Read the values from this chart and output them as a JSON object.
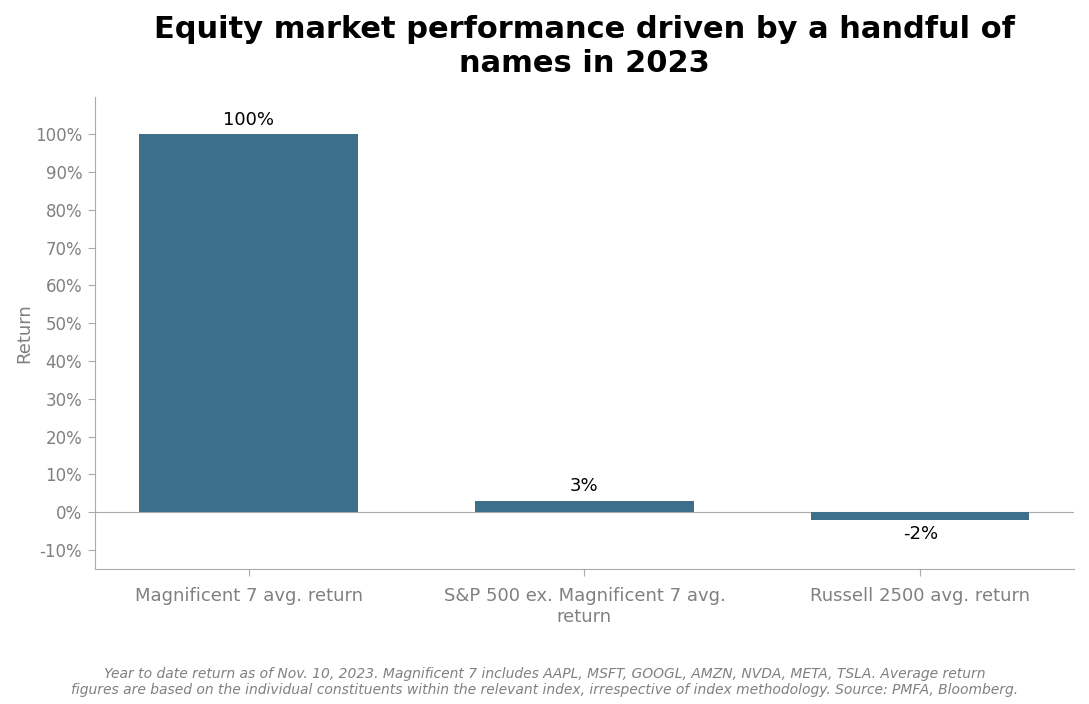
{
  "title": "Equity market performance driven by a handful of\nnames in 2023",
  "categories": [
    "Magnificent 7 avg. return",
    "S&P 500 ex. Magnificent 7 avg.\nreturn",
    "Russell 2500 avg. return"
  ],
  "values": [
    100,
    3,
    -2
  ],
  "bar_labels": [
    "100%",
    "3%",
    "-2%"
  ],
  "bar_color": "#3d6f8a",
  "ylabel": "Return",
  "yticks": [
    -10,
    0,
    10,
    20,
    30,
    40,
    50,
    60,
    70,
    80,
    90,
    100
  ],
  "ytick_labels": [
    "-10%",
    "0%",
    "10%",
    "20%",
    "30%",
    "40%",
    "50%",
    "60%",
    "70%",
    "80%",
    "90%",
    "100%"
  ],
  "ylim": [
    -15,
    110
  ],
  "footnote": "Year to date return as of Nov. 10, 2023. Magnificent 7 includes AAPL, MSFT, GOOGL, AMZN, NVDA, META, TSLA. Average return\nfigures are based on the individual constituents within the relevant index, irrespective of index methodology. Source: PMFA, Bloomberg.",
  "background_color": "#ffffff",
  "title_fontsize": 22,
  "label_fontsize": 13,
  "ylabel_fontsize": 13,
  "tick_fontsize": 12,
  "footnote_fontsize": 10,
  "bar_width": 0.65
}
